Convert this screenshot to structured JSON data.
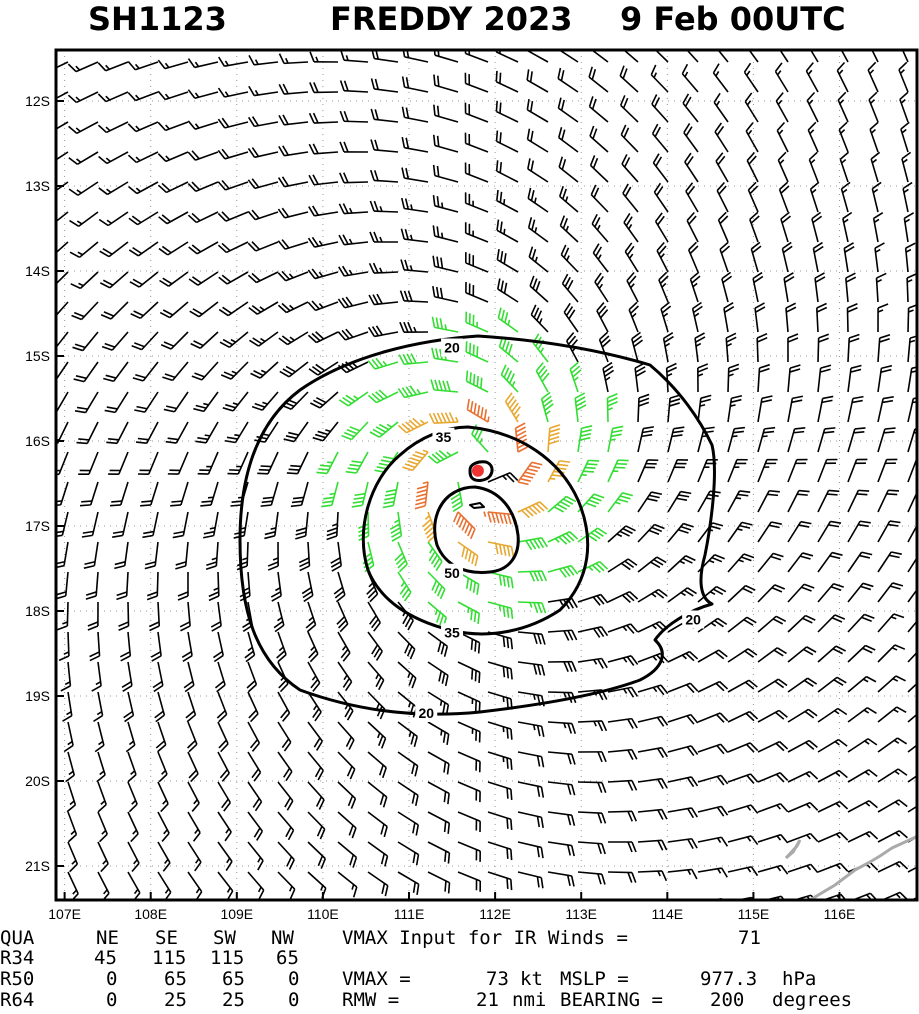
{
  "title": {
    "storm_id": "SH1123",
    "storm_name_year": "FREDDY 2023",
    "date_time": "9 Feb 00UTC"
  },
  "colors": {
    "frame": "#000000",
    "grid": "#9a9a9a",
    "barb_low": "#000000",
    "barb_34kt": "#33dd33",
    "barb_50kt": "#e8a830",
    "barb_64kt": "#e87030",
    "contour": "#000000",
    "center_marker": "#ee3333",
    "coastline": "#aaaaaa"
  },
  "chart_data": {
    "type": "wind_barb_map",
    "x_axis": {
      "range": [
        106.9,
        116.9
      ],
      "ticks": [
        107,
        108,
        109,
        110,
        111,
        112,
        113,
        114,
        115,
        116
      ],
      "tick_labels": [
        "107E",
        "108E",
        "109E",
        "110E",
        "111E",
        "112E",
        "113E",
        "114E",
        "115E",
        "116E"
      ]
    },
    "y_axis": {
      "range": [
        -21.4,
        -11.4
      ],
      "ticks": [
        -12,
        -13,
        -14,
        -15,
        -16,
        -17,
        -18,
        -19,
        -20,
        -21
      ],
      "tick_labels": [
        "12S",
        "13S",
        "14S",
        "15S",
        "16S",
        "17S",
        "18S",
        "19S",
        "20S",
        "21S"
      ]
    },
    "grid": true,
    "center": {
      "lon": 111.8,
      "lat": -16.35
    },
    "rmw_nmi": 21,
    "vmax_kt": 73,
    "contours": [
      {
        "label": "20",
        "label_positions": [
          [
            111.5,
            -14.9
          ],
          [
            111.2,
            -19.2
          ],
          [
            114.3,
            -18.1
          ]
        ]
      },
      {
        "label": "35",
        "label_positions": [
          [
            111.4,
            -15.95
          ],
          [
            111.5,
            -18.25
          ]
        ]
      },
      {
        "label": "50",
        "label_positions": [
          [
            111.5,
            -17.55
          ]
        ]
      }
    ]
  },
  "info_table": {
    "headers": [
      "QUA",
      "NE",
      "SE",
      "SW",
      "NW"
    ],
    "rows": [
      {
        "label": "R34",
        "values": [
          "45",
          "115",
          "115",
          "65"
        ]
      },
      {
        "label": "R50",
        "values": [
          "0",
          "65",
          "65",
          "0"
        ]
      },
      {
        "label": "R64",
        "values": [
          "0",
          "25",
          "25",
          "0"
        ]
      }
    ],
    "vmax_input_text": "VMAX Input for IR Winds =",
    "vmax_input_value": "71",
    "vmax_line_prefix": "VMAX =",
    "vmax_value": "73",
    "vmax_unit": "kt",
    "mslp_label": "MSLP =",
    "mslp_value": "977.3",
    "mslp_unit": "hPa",
    "rmw_label": "RMW =",
    "rmw_value": "21",
    "rmw_unit": "nmi",
    "bearing_label": "BEARING =",
    "bearing_value": "200",
    "bearing_unit": "degrees"
  }
}
